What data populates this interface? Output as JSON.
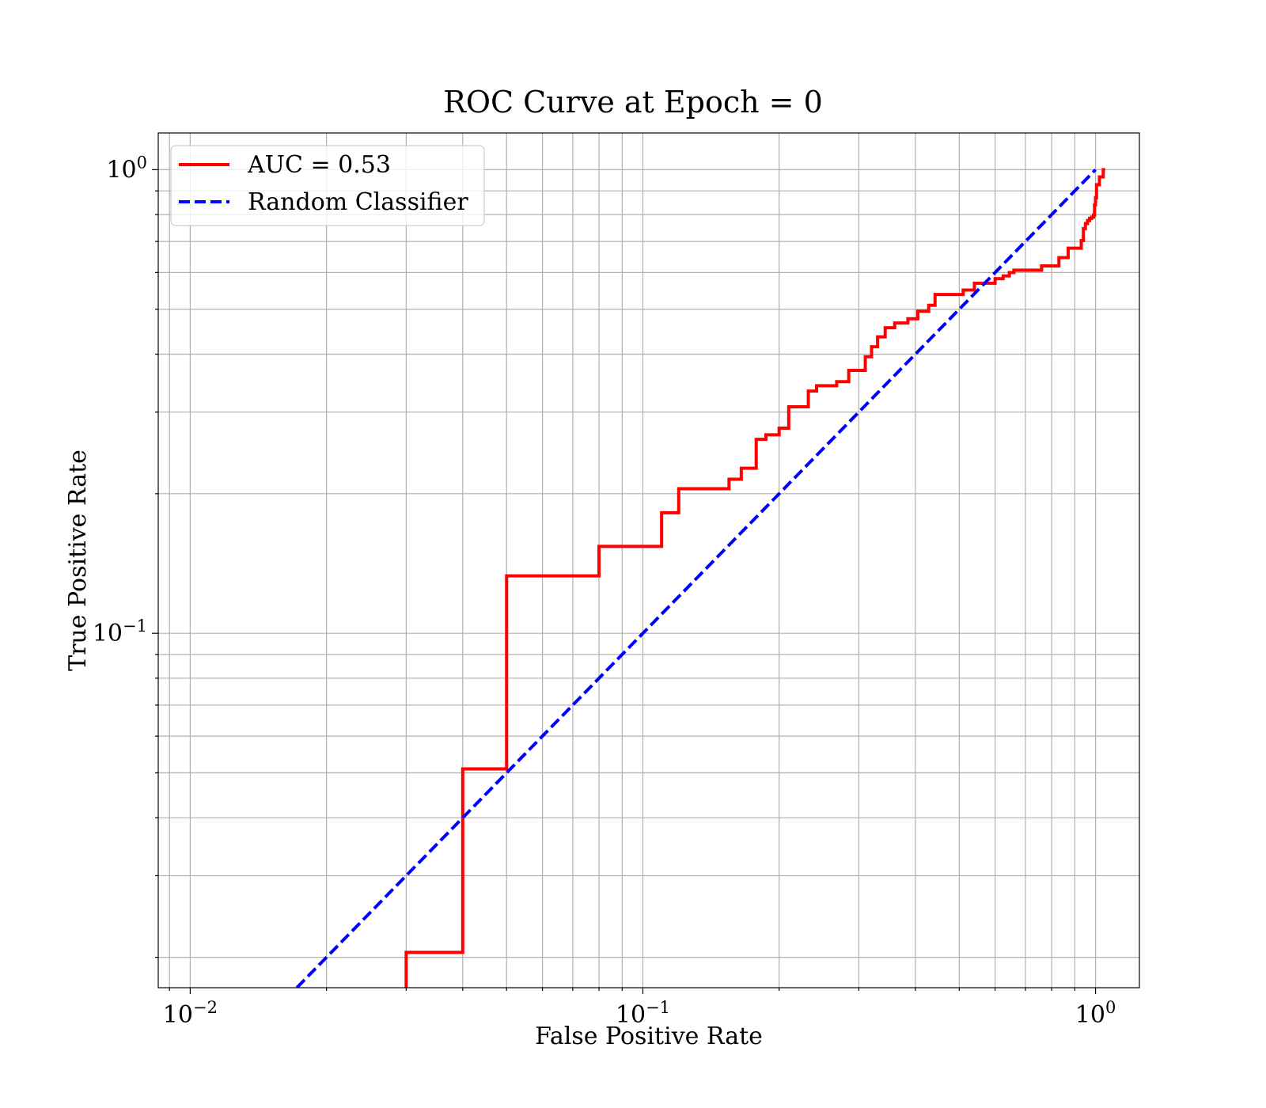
{
  "chart_data": {
    "type": "line",
    "title": "ROC Curve at Epoch = 0",
    "xlabel": "False Positive Rate",
    "ylabel": "True Positive Rate",
    "xscale": "log",
    "yscale": "log",
    "xlim": [
      0.0085,
      1.25
    ],
    "ylim": [
      0.0172,
      1.2
    ],
    "grid": "both (major and minor)",
    "legend_position": "top-left",
    "x_ticks": [
      {
        "value": 0.01,
        "base": "10",
        "exp": "−2"
      },
      {
        "value": 0.1,
        "base": "10",
        "exp": "−1"
      },
      {
        "value": 1,
        "base": "10",
        "exp": "0"
      }
    ],
    "y_ticks": [
      {
        "value": 0.1,
        "base": "10",
        "exp": "−1"
      },
      {
        "value": 1,
        "base": "10",
        "exp": "0"
      }
    ],
    "series": [
      {
        "name": "AUC = 0.53",
        "color": "#ff0000",
        "style": "solid",
        "step": true,
        "points": [
          [
            0.03,
            0.0172
          ],
          [
            0.03,
            0.0205
          ],
          [
            0.04,
            0.0205
          ],
          [
            0.04,
            0.051
          ],
          [
            0.05,
            0.051
          ],
          [
            0.05,
            0.133
          ],
          [
            0.08,
            0.133
          ],
          [
            0.08,
            0.154
          ],
          [
            0.11,
            0.154
          ],
          [
            0.11,
            0.182
          ],
          [
            0.12,
            0.182
          ],
          [
            0.12,
            0.205
          ],
          [
            0.155,
            0.205
          ],
          [
            0.155,
            0.215
          ],
          [
            0.165,
            0.215
          ],
          [
            0.165,
            0.227
          ],
          [
            0.178,
            0.227
          ],
          [
            0.178,
            0.262
          ],
          [
            0.187,
            0.262
          ],
          [
            0.187,
            0.268
          ],
          [
            0.2,
            0.268
          ],
          [
            0.2,
            0.277
          ],
          [
            0.21,
            0.277
          ],
          [
            0.21,
            0.308
          ],
          [
            0.232,
            0.308
          ],
          [
            0.232,
            0.333
          ],
          [
            0.242,
            0.333
          ],
          [
            0.242,
            0.342
          ],
          [
            0.268,
            0.342
          ],
          [
            0.268,
            0.349
          ],
          [
            0.285,
            0.349
          ],
          [
            0.285,
            0.369
          ],
          [
            0.31,
            0.369
          ],
          [
            0.31,
            0.395
          ],
          [
            0.32,
            0.395
          ],
          [
            0.32,
            0.415
          ],
          [
            0.33,
            0.415
          ],
          [
            0.33,
            0.436
          ],
          [
            0.343,
            0.436
          ],
          [
            0.343,
            0.456
          ],
          [
            0.36,
            0.456
          ],
          [
            0.36,
            0.467
          ],
          [
            0.385,
            0.467
          ],
          [
            0.385,
            0.477
          ],
          [
            0.405,
            0.477
          ],
          [
            0.405,
            0.495
          ],
          [
            0.428,
            0.495
          ],
          [
            0.428,
            0.51
          ],
          [
            0.442,
            0.51
          ],
          [
            0.442,
            0.538
          ],
          [
            0.51,
            0.538
          ],
          [
            0.51,
            0.55
          ],
          [
            0.54,
            0.55
          ],
          [
            0.54,
            0.569
          ],
          [
            0.6,
            0.569
          ],
          [
            0.6,
            0.582
          ],
          [
            0.625,
            0.582
          ],
          [
            0.625,
            0.59
          ],
          [
            0.645,
            0.59
          ],
          [
            0.645,
            0.6
          ],
          [
            0.66,
            0.6
          ],
          [
            0.66,
            0.607
          ],
          [
            0.76,
            0.607
          ],
          [
            0.76,
            0.62
          ],
          [
            0.83,
            0.62
          ],
          [
            0.83,
            0.646
          ],
          [
            0.87,
            0.646
          ],
          [
            0.87,
            0.677
          ],
          [
            0.93,
            0.677
          ],
          [
            0.93,
            0.703
          ],
          [
            0.94,
            0.703
          ],
          [
            0.94,
            0.746
          ],
          [
            0.95,
            0.746
          ],
          [
            0.95,
            0.765
          ],
          [
            0.96,
            0.765
          ],
          [
            0.96,
            0.777
          ],
          [
            0.97,
            0.777
          ],
          [
            0.97,
            0.785
          ],
          [
            0.98,
            0.785
          ],
          [
            0.98,
            0.79
          ],
          [
            0.99,
            0.79
          ],
          [
            0.99,
            0.798
          ],
          [
            0.995,
            0.798
          ],
          [
            0.995,
            0.84
          ],
          [
            1.0,
            0.84
          ],
          [
            1.0,
            0.87
          ],
          [
            1.005,
            0.87
          ],
          [
            1.005,
            0.928
          ],
          [
            1.02,
            0.928
          ],
          [
            1.02,
            0.965
          ],
          [
            1.04,
            0.965
          ],
          [
            1.04,
            1.0
          ],
          [
            1.05,
            1.0
          ]
        ]
      },
      {
        "name": "Random Classifier",
        "color": "#0000ff",
        "style": "dashed",
        "step": false,
        "points": [
          [
            0.0172,
            0.0172
          ],
          [
            1.0,
            1.0
          ]
        ]
      }
    ]
  }
}
